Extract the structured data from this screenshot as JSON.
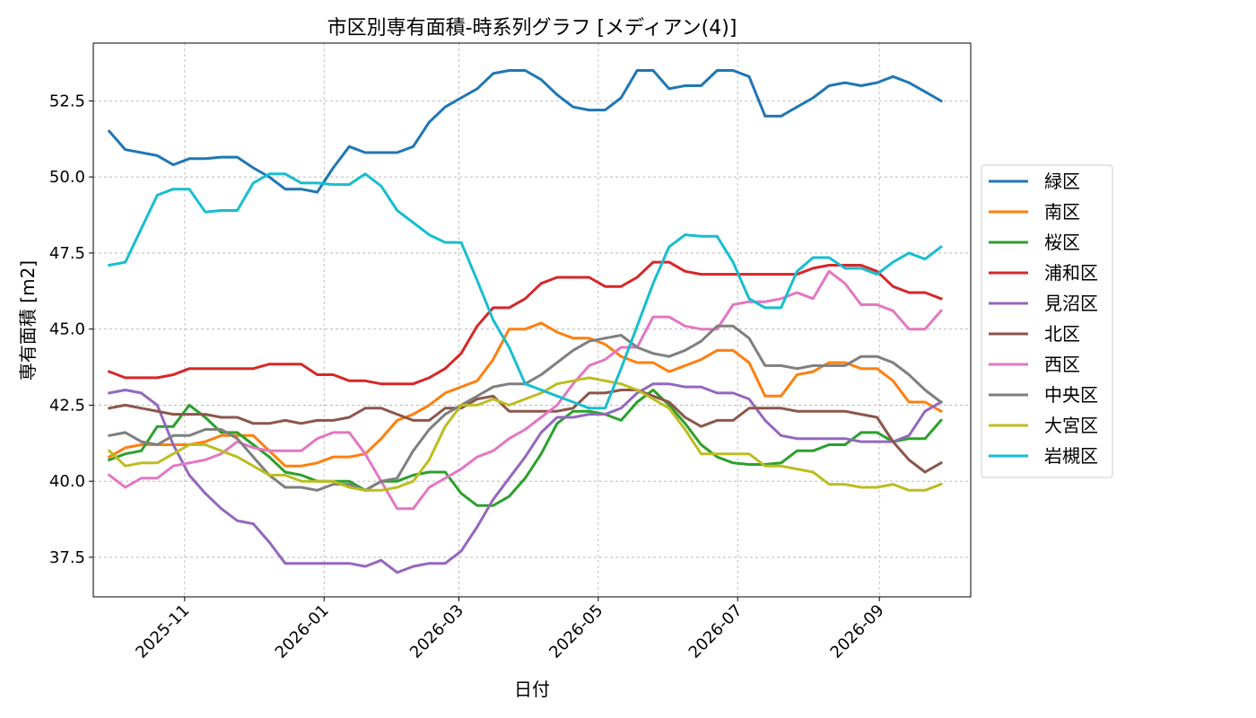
{
  "chart_data": {
    "type": "line",
    "title": "市区別専有面積-時系列グラフ [メディアン(4)]",
    "xlabel": "日付",
    "ylabel": "専有面積 [m2]",
    "grid": true,
    "legend_position": "right",
    "xlim": [
      "2025-09-22",
      "2026-10-11"
    ],
    "ylim": [
      36.2,
      54.4
    ],
    "x_ticks": [
      "2025-11-01",
      "2026-01-01",
      "2026-03-01",
      "2026-05-01",
      "2026-07-01",
      "2026-09-01"
    ],
    "x_tick_labels": [
      "2025-11",
      "2026-01",
      "2026-03",
      "2026-05",
      "2026-07",
      "2026-09"
    ],
    "y_ticks": [
      37.5,
      40.0,
      42.5,
      45.0,
      47.5,
      50.0,
      52.5
    ],
    "y_tick_labels": [
      "37.5",
      "40.0",
      "42.5",
      "45.0",
      "47.5",
      "50.0",
      "52.5"
    ],
    "x": [
      "2025-09-29",
      "2025-10-06",
      "2025-10-13",
      "2025-10-20",
      "2025-10-27",
      "2025-11-03",
      "2025-11-10",
      "2025-11-17",
      "2025-11-24",
      "2025-12-01",
      "2025-12-08",
      "2025-12-15",
      "2025-12-22",
      "2025-12-29",
      "2026-01-05",
      "2026-01-12",
      "2026-01-19",
      "2026-01-26",
      "2026-02-02",
      "2026-02-09",
      "2026-02-16",
      "2026-02-23",
      "2026-03-02",
      "2026-03-09",
      "2026-03-16",
      "2026-03-23",
      "2026-03-30",
      "2026-04-06",
      "2026-04-13",
      "2026-04-20",
      "2026-04-27",
      "2026-05-04",
      "2026-05-11",
      "2026-05-18",
      "2026-05-25",
      "2026-06-01",
      "2026-06-08",
      "2026-06-15",
      "2026-06-22",
      "2026-06-29",
      "2026-07-06",
      "2026-07-13",
      "2026-07-20",
      "2026-07-27",
      "2026-08-03",
      "2026-08-10",
      "2026-08-17",
      "2026-08-24",
      "2026-08-31",
      "2026-09-07",
      "2026-09-14",
      "2026-09-21",
      "2026-09-28"
    ],
    "series": [
      {
        "name": "緑区",
        "color": "#1f77b4",
        "values": [
          51.5,
          50.9,
          50.8,
          50.7,
          50.4,
          50.6,
          50.6,
          50.65,
          50.65,
          50.3,
          50.0,
          49.6,
          49.6,
          49.5,
          50.3,
          51.0,
          50.8,
          50.8,
          50.8,
          51.0,
          51.8,
          52.3,
          52.6,
          52.9,
          53.4,
          53.5,
          53.5,
          53.2,
          52.7,
          52.3,
          52.2,
          52.2,
          52.6,
          53.5,
          53.5,
          52.9,
          53.0,
          53.0,
          53.5,
          53.5,
          53.3,
          52.0,
          52.0,
          52.3,
          52.6,
          53.0,
          53.1,
          53.0,
          53.1,
          53.3,
          53.1,
          52.8,
          52.5
        ]
      },
      {
        "name": "南区",
        "color": "#ff7f0e",
        "values": [
          40.8,
          41.1,
          41.2,
          41.2,
          41.2,
          41.2,
          41.3,
          41.5,
          41.5,
          41.5,
          41.0,
          40.5,
          40.5,
          40.6,
          40.8,
          40.8,
          40.9,
          41.4,
          42.0,
          42.2,
          42.5,
          42.9,
          43.1,
          43.3,
          44.0,
          45.0,
          45.0,
          45.2,
          44.9,
          44.7,
          44.7,
          44.5,
          44.1,
          43.9,
          43.9,
          43.6,
          43.8,
          44.0,
          44.3,
          44.3,
          43.9,
          42.8,
          42.8,
          43.5,
          43.6,
          43.9,
          43.9,
          43.7,
          43.7,
          43.3,
          42.6,
          42.6,
          42.3
        ]
      },
      {
        "name": "桜区",
        "color": "#2ca02c",
        "values": [
          40.7,
          40.9,
          41.0,
          41.8,
          41.8,
          42.5,
          42.1,
          41.6,
          41.6,
          41.2,
          40.8,
          40.3,
          40.2,
          40.0,
          40.0,
          40.0,
          39.7,
          40.0,
          40.0,
          40.2,
          40.3,
          40.3,
          39.6,
          39.2,
          39.2,
          39.5,
          40.1,
          40.9,
          41.9,
          42.3,
          42.3,
          42.2,
          42.0,
          42.6,
          43.0,
          42.5,
          41.9,
          41.2,
          40.8,
          40.6,
          40.55,
          40.55,
          40.6,
          41.0,
          41.0,
          41.2,
          41.2,
          41.6,
          41.6,
          41.3,
          41.4,
          41.4,
          42.0
        ]
      },
      {
        "name": "浦和区",
        "color": "#d62728",
        "values": [
          43.6,
          43.4,
          43.4,
          43.4,
          43.5,
          43.7,
          43.7,
          43.7,
          43.7,
          43.7,
          43.85,
          43.85,
          43.85,
          43.5,
          43.5,
          43.3,
          43.3,
          43.2,
          43.2,
          43.2,
          43.4,
          43.7,
          44.2,
          45.1,
          45.7,
          45.7,
          46.0,
          46.5,
          46.7,
          46.7,
          46.7,
          46.4,
          46.4,
          46.7,
          47.2,
          47.2,
          46.9,
          46.8,
          46.8,
          46.8,
          46.8,
          46.8,
          46.8,
          46.8,
          47.0,
          47.1,
          47.1,
          47.1,
          46.9,
          46.4,
          46.2,
          46.2,
          46.0
        ]
      },
      {
        "name": "見沼区",
        "color": "#9467bd",
        "values": [
          42.9,
          43.0,
          42.9,
          42.5,
          41.2,
          40.2,
          39.6,
          39.1,
          38.7,
          38.6,
          38.0,
          37.3,
          37.3,
          37.3,
          37.3,
          37.3,
          37.2,
          37.4,
          37.0,
          37.2,
          37.3,
          37.3,
          37.7,
          38.5,
          39.4,
          40.1,
          40.8,
          41.6,
          42.1,
          42.1,
          42.2,
          42.2,
          42.4,
          42.9,
          43.2,
          43.2,
          43.1,
          43.1,
          42.9,
          42.9,
          42.7,
          42.0,
          41.5,
          41.4,
          41.4,
          41.4,
          41.4,
          41.3,
          41.3,
          41.3,
          41.5,
          42.3,
          42.6
        ]
      },
      {
        "name": "北区",
        "color": "#8c564b",
        "values": [
          42.4,
          42.5,
          42.4,
          42.3,
          42.2,
          42.2,
          42.2,
          42.1,
          42.1,
          41.9,
          41.9,
          42.0,
          41.9,
          42.0,
          42.0,
          42.1,
          42.4,
          42.4,
          42.2,
          42.0,
          42.0,
          42.4,
          42.4,
          42.7,
          42.8,
          42.3,
          42.3,
          42.3,
          42.3,
          42.4,
          42.9,
          42.9,
          43.0,
          43.0,
          42.8,
          42.6,
          42.1,
          41.8,
          42.0,
          42.0,
          42.4,
          42.4,
          42.4,
          42.3,
          42.3,
          42.3,
          42.3,
          42.2,
          42.1,
          41.3,
          40.7,
          40.3,
          40.6
        ]
      },
      {
        "name": "西区",
        "color": "#e377c2",
        "values": [
          40.2,
          39.8,
          40.1,
          40.1,
          40.5,
          40.6,
          40.7,
          40.9,
          41.3,
          41.1,
          41.0,
          41.0,
          41.0,
          41.4,
          41.6,
          41.6,
          40.9,
          40.0,
          39.1,
          39.1,
          39.8,
          40.1,
          40.4,
          40.8,
          41.0,
          41.4,
          41.7,
          42.1,
          42.5,
          43.2,
          43.8,
          44.0,
          44.4,
          44.4,
          45.4,
          45.4,
          45.1,
          45.0,
          45.0,
          45.8,
          45.9,
          45.9,
          46.0,
          46.2,
          46.0,
          46.9,
          46.5,
          45.8,
          45.8,
          45.6,
          45.0,
          45.0,
          45.6
        ]
      },
      {
        "name": "中央区",
        "color": "#7f7f7f",
        "values": [
          41.5,
          41.6,
          41.3,
          41.2,
          41.5,
          41.5,
          41.7,
          41.7,
          41.4,
          40.8,
          40.2,
          39.8,
          39.8,
          39.7,
          39.9,
          39.9,
          39.7,
          40.0,
          40.1,
          41.0,
          41.7,
          42.2,
          42.5,
          42.8,
          43.1,
          43.2,
          43.2,
          43.5,
          43.9,
          44.3,
          44.6,
          44.7,
          44.8,
          44.4,
          44.2,
          44.1,
          44.3,
          44.6,
          45.1,
          45.1,
          44.7,
          43.8,
          43.8,
          43.7,
          43.8,
          43.8,
          43.8,
          44.1,
          44.1,
          43.9,
          43.5,
          43.0,
          42.6
        ]
      },
      {
        "name": "大宮区",
        "color": "#bcbd22",
        "values": [
          41.0,
          40.5,
          40.6,
          40.6,
          40.9,
          41.2,
          41.2,
          41.0,
          40.8,
          40.5,
          40.2,
          40.2,
          40.0,
          40.0,
          40.0,
          39.8,
          39.7,
          39.7,
          39.8,
          40.0,
          40.7,
          41.8,
          42.5,
          42.5,
          42.7,
          42.5,
          42.7,
          42.9,
          43.2,
          43.3,
          43.4,
          43.3,
          43.2,
          43.0,
          42.7,
          42.4,
          41.7,
          40.9,
          40.9,
          40.9,
          40.9,
          40.5,
          40.5,
          40.4,
          40.3,
          39.9,
          39.9,
          39.8,
          39.8,
          39.9,
          39.7,
          39.7,
          39.9
        ]
      },
      {
        "name": "岩槻区",
        "color": "#17becf",
        "values": [
          47.1,
          47.2,
          48.3,
          49.4,
          49.6,
          49.6,
          48.85,
          48.9,
          48.9,
          49.8,
          50.1,
          50.1,
          49.8,
          49.8,
          49.75,
          49.75,
          50.1,
          49.7,
          48.9,
          48.5,
          48.1,
          47.85,
          47.85,
          46.6,
          45.3,
          44.4,
          43.2,
          43.0,
          42.8,
          42.6,
          42.4,
          42.4,
          43.7,
          45.1,
          46.5,
          47.7,
          48.1,
          48.05,
          48.05,
          47.2,
          46.0,
          45.7,
          45.7,
          46.9,
          47.35,
          47.35,
          47.0,
          47.0,
          46.8,
          47.2,
          47.5,
          47.3,
          47.7
        ]
      }
    ]
  }
}
